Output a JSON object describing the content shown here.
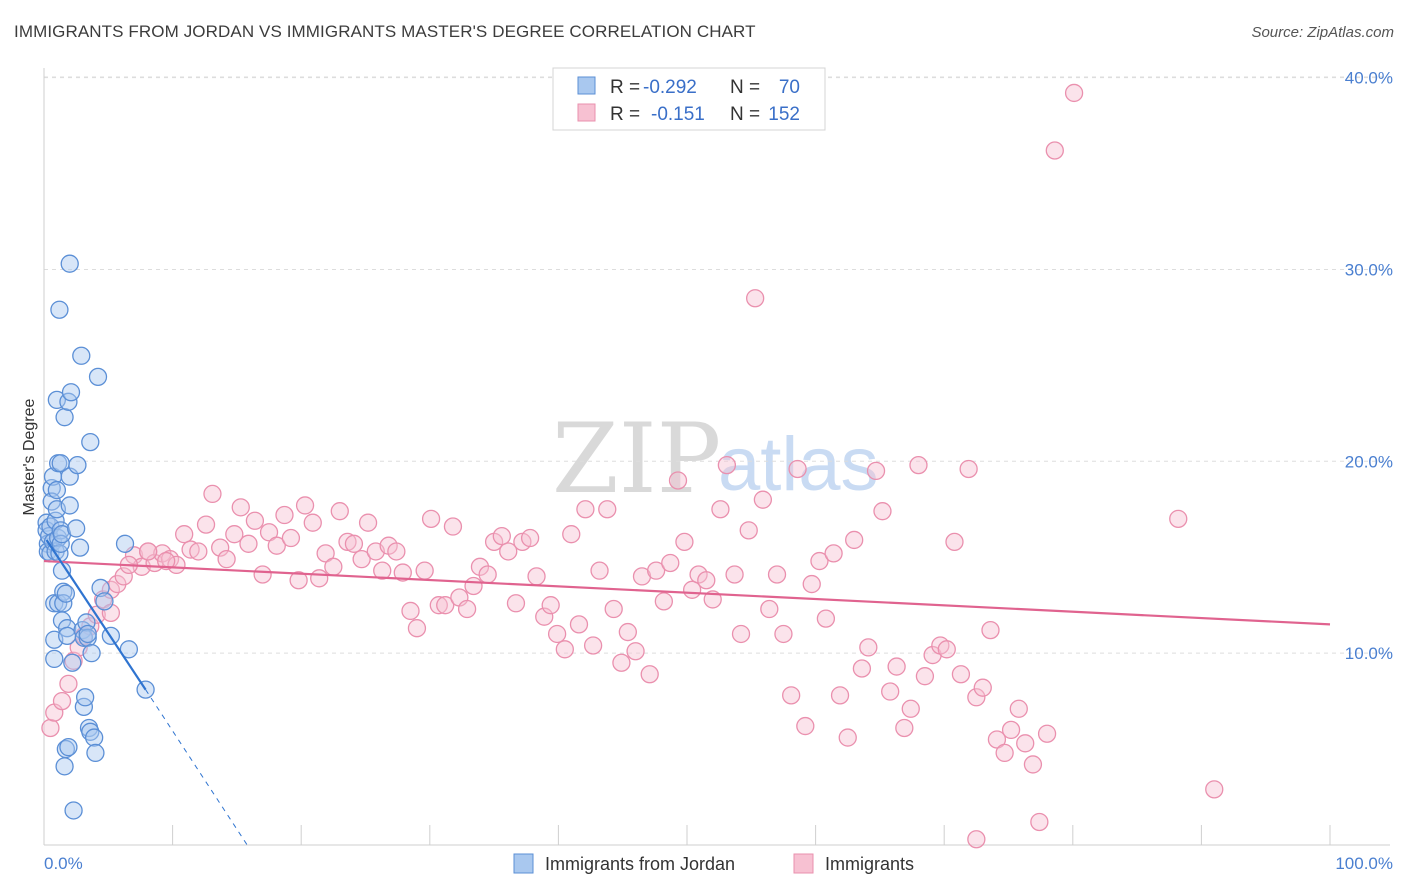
{
  "header": {
    "title": "IMMIGRANTS FROM JORDAN VS IMMIGRANTS MASTER'S DEGREE CORRELATION CHART",
    "source": "Source: ZipAtlas.com"
  },
  "watermark": {
    "zip": "ZIP",
    "atlas": "atlas"
  },
  "colors": {
    "blue_fill": "#a9c8ef",
    "blue_stroke": "#5b8fd6",
    "blue_line": "#2f74d0",
    "pink_fill": "#f7c1d2",
    "pink_stroke": "#ea90ae",
    "pink_line": "#e0638f",
    "grid": "#dddddd",
    "tick_label": "#4a7fd0"
  },
  "legend": {
    "r_label": "R =",
    "n_label": "N =",
    "rows": [
      {
        "r": "-0.292",
        "n": "70"
      },
      {
        "r": "-0.151",
        "n": "152"
      }
    ]
  },
  "bottom_legend": [
    "Immigrants from Jordan",
    "Immigrants"
  ],
  "chart_data": {
    "type": "scatter",
    "title": "IMMIGRANTS FROM JORDAN VS IMMIGRANTS MASTER'S DEGREE CORRELATION CHART",
    "xlabel": "",
    "ylabel": "Master's Degree",
    "xlim": [
      0,
      100
    ],
    "ylim": [
      0,
      40.5
    ],
    "x_tick_labels": [
      "0.0%",
      "100.0%"
    ],
    "y_ticks": [
      10,
      20,
      30,
      40
    ],
    "y_tick_labels": [
      "10.0%",
      "20.0%",
      "30.0%",
      "40.0%"
    ],
    "grid": true,
    "legend_position": "top-center",
    "series": [
      {
        "name": "Immigrants from Jordan",
        "r": -0.292,
        "n": 70,
        "trend": {
          "x": [
            0.2,
            7.9
          ],
          "y": [
            15.9,
            8.1
          ]
        },
        "trend_extension": {
          "x": [
            7.9,
            15.8
          ],
          "y": [
            8.1,
            0
          ]
        },
        "points": [
          [
            0.2,
            16.8
          ],
          [
            0.2,
            16.4
          ],
          [
            0.3,
            15.7
          ],
          [
            0.3,
            15.3
          ],
          [
            0.4,
            16.1
          ],
          [
            0.5,
            15.2
          ],
          [
            0.5,
            16.6
          ],
          [
            0.6,
            18.6
          ],
          [
            0.6,
            17.9
          ],
          [
            0.7,
            19.2
          ],
          [
            0.7,
            15.8
          ],
          [
            0.8,
            12.6
          ],
          [
            0.8,
            10.7
          ],
          [
            0.8,
            9.7
          ],
          [
            0.9,
            16.9
          ],
          [
            0.9,
            15.3
          ],
          [
            1.0,
            17.5
          ],
          [
            1.0,
            18.5
          ],
          [
            1.0,
            23.2
          ],
          [
            1.1,
            19.9
          ],
          [
            1.1,
            16.0
          ],
          [
            1.1,
            12.6
          ],
          [
            1.2,
            27.9
          ],
          [
            1.2,
            15.2
          ],
          [
            1.3,
            19.9
          ],
          [
            1.3,
            16.4
          ],
          [
            1.3,
            15.7
          ],
          [
            1.4,
            11.7
          ],
          [
            1.4,
            16.2
          ],
          [
            1.4,
            14.3
          ],
          [
            1.5,
            13.2
          ],
          [
            1.5,
            12.6
          ],
          [
            1.6,
            22.3
          ],
          [
            1.6,
            4.1
          ],
          [
            1.7,
            5.0
          ],
          [
            1.7,
            13.1
          ],
          [
            1.8,
            11.3
          ],
          [
            1.8,
            10.9
          ],
          [
            1.9,
            5.1
          ],
          [
            1.9,
            23.1
          ],
          [
            2.0,
            19.2
          ],
          [
            2.0,
            17.7
          ],
          [
            2.0,
            30.3
          ],
          [
            2.1,
            23.6
          ],
          [
            2.2,
            9.5
          ],
          [
            2.3,
            1.8
          ],
          [
            2.5,
            16.5
          ],
          [
            2.6,
            19.8
          ],
          [
            2.8,
            15.5
          ],
          [
            2.9,
            25.5
          ],
          [
            3.0,
            11.2
          ],
          [
            3.1,
            10.8
          ],
          [
            3.1,
            7.2
          ],
          [
            3.2,
            7.7
          ],
          [
            3.3,
            11.6
          ],
          [
            3.4,
            10.8
          ],
          [
            3.5,
            6.1
          ],
          [
            3.6,
            5.9
          ],
          [
            3.6,
            21.0
          ],
          [
            3.7,
            10.0
          ],
          [
            3.9,
            5.6
          ],
          [
            4.0,
            4.8
          ],
          [
            4.2,
            24.4
          ],
          [
            4.4,
            13.4
          ],
          [
            4.7,
            12.7
          ],
          [
            5.2,
            10.9
          ],
          [
            6.3,
            15.7
          ],
          [
            6.6,
            10.2
          ],
          [
            7.9,
            8.1
          ],
          [
            3.4,
            11.0
          ]
        ]
      },
      {
        "name": "Immigrants",
        "r": -0.151,
        "n": 152,
        "trend": {
          "x": [
            0,
            100
          ],
          "y": [
            14.8,
            11.5
          ]
        },
        "points": [
          [
            0.5,
            6.1
          ],
          [
            0.8,
            6.9
          ],
          [
            1.4,
            7.5
          ],
          [
            1.9,
            8.4
          ],
          [
            2.3,
            9.6
          ],
          [
            2.7,
            10.3
          ],
          [
            3.1,
            10.9
          ],
          [
            3.6,
            11.4
          ],
          [
            4.1,
            12.0
          ],
          [
            4.6,
            12.8
          ],
          [
            5.2,
            13.3
          ],
          [
            5.7,
            13.6
          ],
          [
            6.2,
            14.0
          ],
          [
            7.0,
            15.1
          ],
          [
            7.6,
            14.5
          ],
          [
            8.1,
            15.3
          ],
          [
            8.6,
            14.7
          ],
          [
            9.2,
            15.2
          ],
          [
            9.8,
            14.9
          ],
          [
            10.3,
            14.6
          ],
          [
            10.9,
            16.2
          ],
          [
            11.4,
            15.4
          ],
          [
            12.0,
            15.3
          ],
          [
            12.6,
            16.7
          ],
          [
            13.1,
            18.3
          ],
          [
            13.7,
            15.5
          ],
          [
            14.2,
            14.9
          ],
          [
            14.8,
            16.2
          ],
          [
            15.3,
            17.6
          ],
          [
            15.9,
            15.7
          ],
          [
            16.4,
            16.9
          ],
          [
            17.0,
            14.1
          ],
          [
            17.5,
            16.3
          ],
          [
            18.1,
            15.6
          ],
          [
            18.7,
            17.2
          ],
          [
            19.2,
            16.0
          ],
          [
            19.8,
            13.8
          ],
          [
            20.3,
            17.7
          ],
          [
            20.9,
            16.8
          ],
          [
            21.4,
            13.9
          ],
          [
            21.9,
            15.2
          ],
          [
            22.5,
            14.5
          ],
          [
            23.0,
            17.4
          ],
          [
            23.6,
            15.8
          ],
          [
            24.1,
            15.7
          ],
          [
            24.7,
            14.9
          ],
          [
            25.2,
            16.8
          ],
          [
            25.8,
            15.3
          ],
          [
            26.3,
            14.3
          ],
          [
            26.8,
            15.6
          ],
          [
            27.4,
            15.3
          ],
          [
            27.9,
            14.2
          ],
          [
            28.5,
            12.2
          ],
          [
            29.0,
            11.3
          ],
          [
            29.6,
            14.3
          ],
          [
            30.1,
            17.0
          ],
          [
            30.7,
            12.5
          ],
          [
            31.2,
            12.5
          ],
          [
            31.8,
            16.6
          ],
          [
            32.3,
            12.9
          ],
          [
            32.9,
            12.3
          ],
          [
            33.4,
            13.5
          ],
          [
            33.9,
            14.5
          ],
          [
            34.5,
            14.1
          ],
          [
            35.0,
            15.8
          ],
          [
            35.6,
            16.1
          ],
          [
            36.1,
            15.3
          ],
          [
            36.7,
            12.6
          ],
          [
            37.2,
            15.8
          ],
          [
            37.8,
            16.0
          ],
          [
            38.3,
            14.0
          ],
          [
            38.9,
            11.9
          ],
          [
            39.4,
            12.5
          ],
          [
            39.9,
            11.0
          ],
          [
            40.5,
            10.2
          ],
          [
            41.0,
            16.2
          ],
          [
            41.6,
            11.5
          ],
          [
            42.1,
            17.5
          ],
          [
            42.7,
            10.4
          ],
          [
            43.2,
            14.3
          ],
          [
            43.8,
            17.5
          ],
          [
            44.3,
            12.3
          ],
          [
            44.9,
            9.5
          ],
          [
            45.4,
            11.1
          ],
          [
            46.0,
            10.1
          ],
          [
            46.5,
            14.0
          ],
          [
            47.1,
            8.9
          ],
          [
            47.6,
            14.3
          ],
          [
            48.2,
            12.7
          ],
          [
            48.7,
            14.7
          ],
          [
            49.3,
            19.0
          ],
          [
            49.8,
            15.8
          ],
          [
            50.4,
            13.3
          ],
          [
            50.9,
            14.1
          ],
          [
            51.5,
            13.8
          ],
          [
            52.0,
            12.8
          ],
          [
            52.6,
            17.5
          ],
          [
            53.1,
            19.8
          ],
          [
            53.7,
            14.1
          ],
          [
            54.2,
            11.0
          ],
          [
            54.8,
            16.4
          ],
          [
            55.3,
            28.5
          ],
          [
            55.9,
            18.0
          ],
          [
            56.4,
            12.3
          ],
          [
            57.0,
            14.1
          ],
          [
            57.5,
            11.0
          ],
          [
            58.1,
            7.8
          ],
          [
            58.6,
            19.6
          ],
          [
            59.2,
            6.2
          ],
          [
            59.7,
            13.6
          ],
          [
            60.3,
            14.8
          ],
          [
            60.8,
            11.8
          ],
          [
            61.4,
            15.2
          ],
          [
            61.9,
            7.8
          ],
          [
            62.5,
            5.6
          ],
          [
            63.0,
            15.9
          ],
          [
            63.6,
            9.2
          ],
          [
            64.1,
            10.3
          ],
          [
            64.7,
            19.5
          ],
          [
            65.2,
            17.4
          ],
          [
            65.8,
            8.0
          ],
          [
            66.3,
            9.3
          ],
          [
            66.9,
            6.1
          ],
          [
            67.4,
            7.1
          ],
          [
            68.0,
            19.8
          ],
          [
            68.5,
            8.8
          ],
          [
            69.1,
            9.9
          ],
          [
            69.7,
            10.4
          ],
          [
            70.2,
            10.2
          ],
          [
            70.8,
            15.8
          ],
          [
            71.3,
            8.9
          ],
          [
            71.9,
            19.6
          ],
          [
            72.5,
            7.7
          ],
          [
            73.0,
            8.2
          ],
          [
            73.6,
            11.2
          ],
          [
            74.1,
            5.5
          ],
          [
            74.7,
            4.8
          ],
          [
            75.2,
            6.0
          ],
          [
            75.8,
            7.1
          ],
          [
            76.3,
            5.3
          ],
          [
            76.9,
            4.2
          ],
          [
            77.4,
            1.2
          ],
          [
            78.0,
            5.8
          ],
          [
            78.6,
            36.2
          ],
          [
            80.1,
            39.2
          ],
          [
            88.2,
            17.0
          ],
          [
            91.0,
            2.9
          ],
          [
            72.5,
            0.3
          ],
          [
            6.6,
            14.6
          ],
          [
            9.5,
            14.8
          ],
          [
            5.2,
            12.1
          ],
          [
            8.1,
            15.3
          ]
        ]
      }
    ]
  }
}
